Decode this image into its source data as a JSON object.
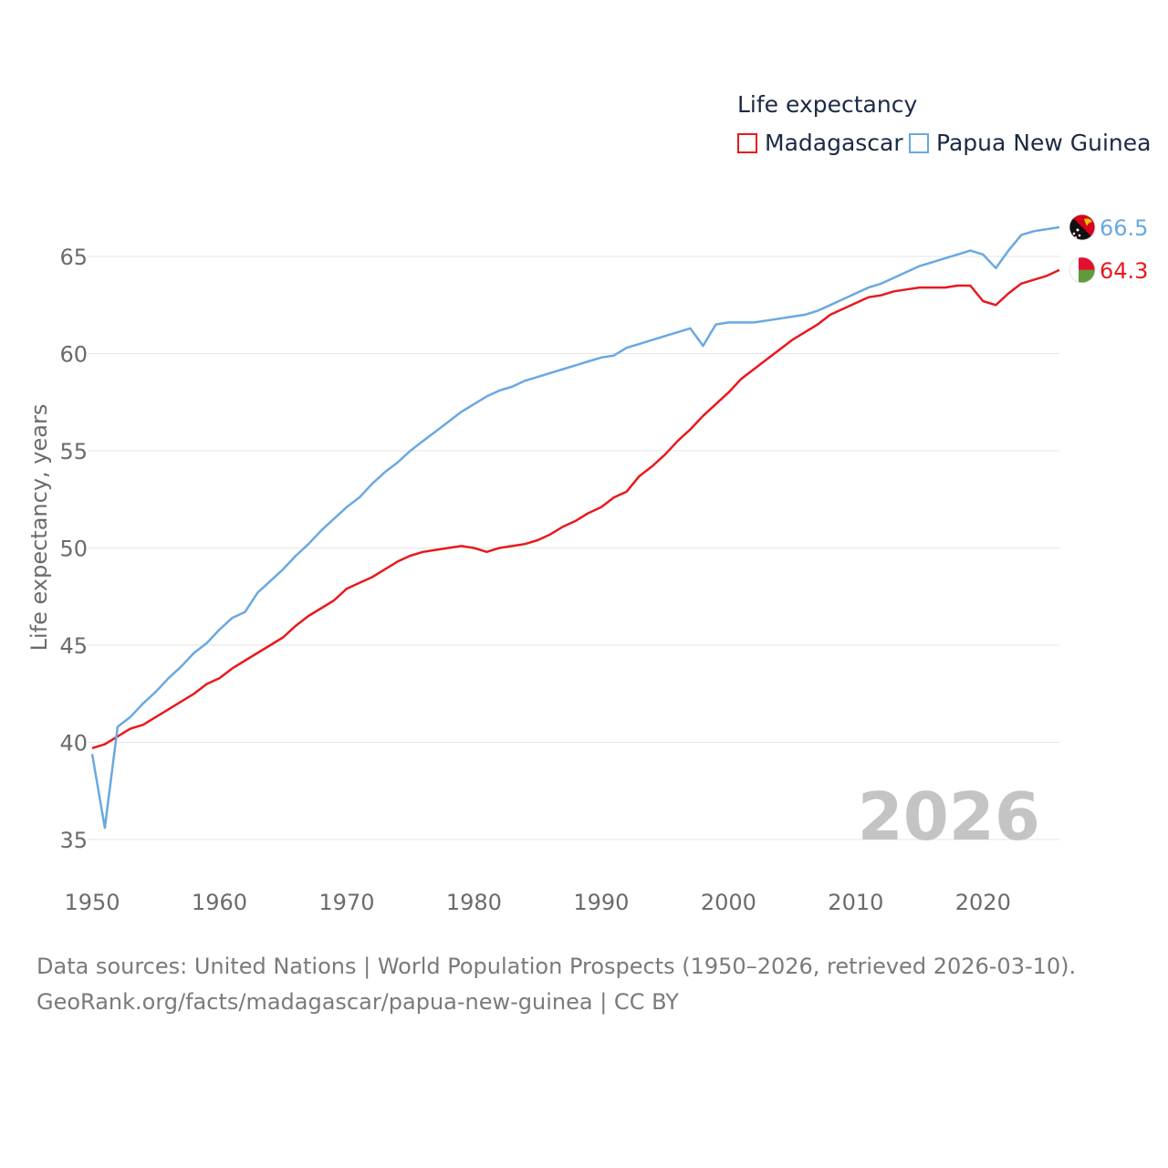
{
  "legend": {
    "title": "Life expectancy",
    "items": [
      {
        "label": "Madagascar",
        "color": "#e8191d"
      },
      {
        "label": "Papua New Guinea",
        "color": "#6aa8e0"
      }
    ]
  },
  "source": {
    "line1": "Data sources: United Nations | World Population Prospects (1950–2026, retrieved 2026-03-10).",
    "line2": "GeoRank.org/facts/madagascar/papua-new-guinea | CC BY"
  },
  "chart_data": {
    "type": "line",
    "title": "Life expectancy",
    "xlabel": "",
    "ylabel": "Life expectancy, years",
    "watermark_year": "2026",
    "xlim": [
      1950,
      2026
    ],
    "ylim": [
      33,
      68
    ],
    "xticks": [
      1950,
      1960,
      1970,
      1980,
      1990,
      2000,
      2010,
      2020
    ],
    "yticks": [
      35,
      40,
      45,
      50,
      55,
      60,
      65
    ],
    "grid": true,
    "x": [
      1950,
      1951,
      1952,
      1953,
      1954,
      1955,
      1956,
      1957,
      1958,
      1959,
      1960,
      1961,
      1962,
      1963,
      1964,
      1965,
      1966,
      1967,
      1968,
      1969,
      1970,
      1971,
      1972,
      1973,
      1974,
      1975,
      1976,
      1977,
      1978,
      1979,
      1980,
      1981,
      1982,
      1983,
      1984,
      1985,
      1986,
      1987,
      1988,
      1989,
      1990,
      1991,
      1992,
      1993,
      1994,
      1995,
      1996,
      1997,
      1998,
      1999,
      2000,
      2001,
      2002,
      2003,
      2004,
      2005,
      2006,
      2007,
      2008,
      2009,
      2010,
      2011,
      2012,
      2013,
      2014,
      2015,
      2016,
      2017,
      2018,
      2019,
      2020,
      2021,
      2022,
      2023,
      2024,
      2025,
      2026
    ],
    "series": [
      {
        "name": "Madagascar",
        "color": "#e8191d",
        "end_label": "64.3",
        "flag": "madagascar-flag",
        "values": [
          39.7,
          39.9,
          40.3,
          40.7,
          40.9,
          41.3,
          41.7,
          42.1,
          42.5,
          43.0,
          43.3,
          43.8,
          44.2,
          44.6,
          45.0,
          45.4,
          46.0,
          46.5,
          46.9,
          47.3,
          47.9,
          48.2,
          48.5,
          48.9,
          49.3,
          49.6,
          49.8,
          49.9,
          50.0,
          50.1,
          50.0,
          49.8,
          50.0,
          50.1,
          50.2,
          50.4,
          50.7,
          51.1,
          51.4,
          51.8,
          52.1,
          52.6,
          52.9,
          53.7,
          54.2,
          54.8,
          55.5,
          56.1,
          56.8,
          57.4,
          58.0,
          58.7,
          59.2,
          59.7,
          60.2,
          60.7,
          61.1,
          61.5,
          62.0,
          62.3,
          62.6,
          62.9,
          63.0,
          63.2,
          63.3,
          63.4,
          63.4,
          63.4,
          63.5,
          63.5,
          62.7,
          62.5,
          63.1,
          63.6,
          63.8,
          64.0,
          64.3
        ]
      },
      {
        "name": "Papua New Guinea",
        "color": "#6aa8e0",
        "end_label": "66.5",
        "flag": "papua-new-guinea-flag",
        "values": [
          39.4,
          35.6,
          40.8,
          41.3,
          42.0,
          42.6,
          43.3,
          43.9,
          44.6,
          45.1,
          45.8,
          46.4,
          46.7,
          47.7,
          48.3,
          48.9,
          49.6,
          50.2,
          50.9,
          51.5,
          52.1,
          52.6,
          53.3,
          53.9,
          54.4,
          55.0,
          55.5,
          56.0,
          56.5,
          57.0,
          57.4,
          57.8,
          58.1,
          58.3,
          58.6,
          58.8,
          59.0,
          59.2,
          59.4,
          59.6,
          59.8,
          59.9,
          60.3,
          60.5,
          60.7,
          60.9,
          61.1,
          61.3,
          60.4,
          61.5,
          61.6,
          61.6,
          61.6,
          61.7,
          61.8,
          61.9,
          62.0,
          62.2,
          62.5,
          62.8,
          63.1,
          63.4,
          63.6,
          63.9,
          64.2,
          64.5,
          64.7,
          64.9,
          65.1,
          65.3,
          65.1,
          64.4,
          65.3,
          66.1,
          66.3,
          66.4,
          66.5
        ]
      }
    ]
  }
}
